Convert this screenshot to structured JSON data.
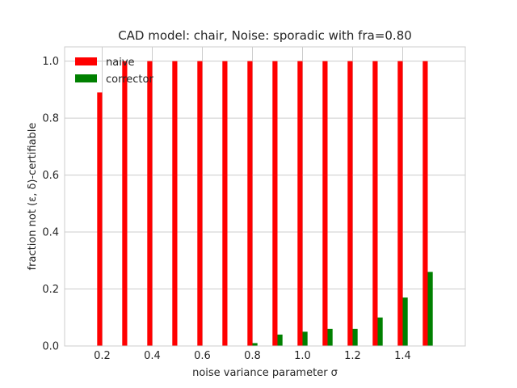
{
  "chart_data": {
    "type": "bar",
    "title": "CAD model: chair, Noise: sporadic with fra=0.80",
    "xlabel": "noise variance parameter σ",
    "ylabel": "fraction not (ε, δ)-certifiable",
    "x": [
      0.2,
      0.3,
      0.4,
      0.5,
      0.6,
      0.7,
      0.8,
      0.9,
      1.0,
      1.1,
      1.2,
      1.3,
      1.4,
      1.5
    ],
    "xlim": [
      0.05,
      1.65
    ],
    "ylim": [
      0.0,
      1.05
    ],
    "xticks": [
      "0.2",
      "0.4",
      "0.6",
      "0.8",
      "1.0",
      "1.2",
      "1.4"
    ],
    "xtick_values": [
      0.2,
      0.4,
      0.6,
      0.8,
      1.0,
      1.2,
      1.4
    ],
    "yticks": [
      "0.0",
      "0.2",
      "0.4",
      "0.6",
      "0.8",
      "1.0"
    ],
    "ytick_values": [
      0.0,
      0.2,
      0.4,
      0.6,
      0.8,
      1.0
    ],
    "grid": true,
    "legend_position": "top-left",
    "series": [
      {
        "name": "naive",
        "color": "#ff0000",
        "values": [
          0.89,
          1.0,
          1.0,
          1.0,
          1.0,
          1.0,
          1.0,
          1.0,
          1.0,
          1.0,
          1.0,
          1.0,
          1.0,
          1.0
        ]
      },
      {
        "name": "corrector",
        "color": "#008000",
        "values": [
          0.0,
          0.0,
          0.0,
          0.0,
          0.0,
          0.0,
          0.01,
          0.04,
          0.05,
          0.06,
          0.06,
          0.1,
          0.17,
          0.26
        ]
      }
    ]
  }
}
